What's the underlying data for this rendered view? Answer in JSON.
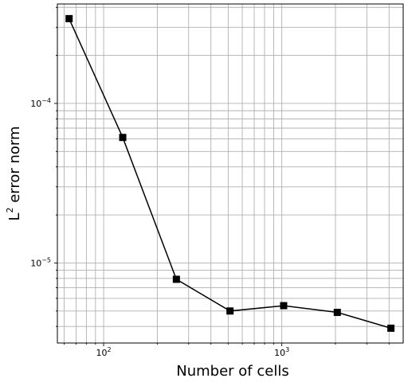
{
  "chart_data": {
    "type": "line",
    "xscale": "log",
    "yscale": "log",
    "xlabel": {
      "base": "Number of cells"
    },
    "ylabel": {
      "prefix": "L",
      "sup": "2",
      "suffix": " error norm"
    },
    "xlim": [
      55,
      4800
    ],
    "ylim": [
      3.15e-06,
      0.00042
    ],
    "grid": "both-major-minor",
    "x_ticks": [
      {
        "value": 100,
        "base": "10",
        "exp": "2"
      },
      {
        "value": 1000,
        "base": "10",
        "exp": "3"
      }
    ],
    "y_ticks": [
      {
        "value": 1e-05,
        "base": "10",
        "exp": "−5"
      },
      {
        "value": 0.0001,
        "base": "10",
        "exp": "−4"
      }
    ],
    "series": [
      {
        "marker": "square",
        "color": "#000000",
        "x": [
          64,
          128,
          256,
          512,
          1024,
          2048,
          4096
        ],
        "y": [
          0.00034,
          6.12e-05,
          7.9e-06,
          5e-06,
          5.4e-06,
          4.9e-06,
          3.9e-06
        ]
      }
    ]
  }
}
